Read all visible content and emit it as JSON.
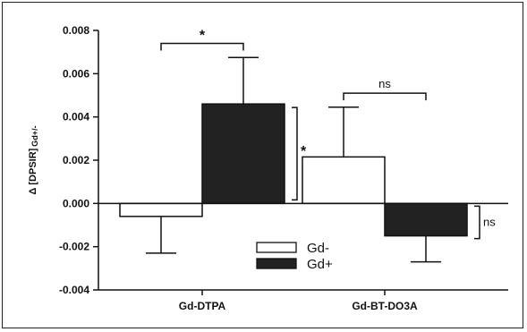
{
  "chart_data": {
    "type": "bar",
    "title": "",
    "xlabel": "",
    "ylabel": "Δ [DPSIR]",
    "ylabel_subscript": "Gd+/-",
    "ylim": [
      -0.004,
      0.008
    ],
    "yticks": [
      -0.004,
      -0.002,
      0.0,
      0.002,
      0.004,
      0.006,
      0.008
    ],
    "ytick_labels": [
      "-0.004",
      "-0.002",
      "0.000",
      "0.002",
      "0.004",
      "0.006",
      "0.008"
    ],
    "categories": [
      "Gd-DTPA",
      "Gd-BT-DO3A"
    ],
    "series": [
      {
        "name": "Gd-",
        "color": "#ffffff",
        "values": [
          -0.0006,
          0.00215
        ],
        "errors": [
          0.0017,
          0.0023
        ]
      },
      {
        "name": "Gd+",
        "color": "#222222",
        "values": [
          0.0046,
          -0.0015
        ],
        "errors": [
          0.00215,
          0.0012
        ]
      }
    ],
    "legend": {
      "placement": "bottom-center",
      "entries": [
        "Gd-",
        "Gd+"
      ]
    },
    "annotations": [
      {
        "type": "between-categories",
        "category": 0,
        "y": 0.0074,
        "label": "*"
      },
      {
        "type": "between-categories",
        "category": 1,
        "y": 0.0051,
        "label": "ns"
      },
      {
        "type": "vs-zero",
        "category": 0,
        "series": 1,
        "label": "*"
      },
      {
        "type": "vs-zero",
        "category": 1,
        "series": 1,
        "label": "ns"
      }
    ],
    "grid": false
  }
}
